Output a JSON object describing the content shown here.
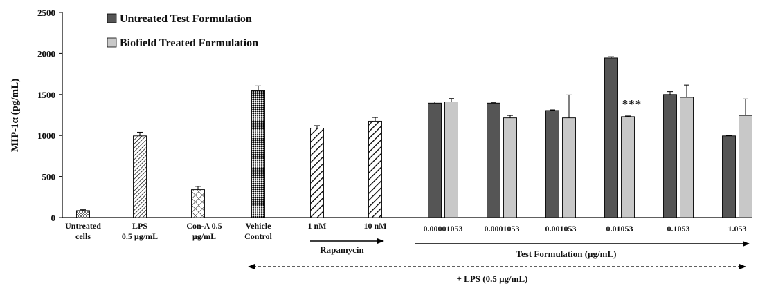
{
  "chart_data": {
    "type": "bar",
    "ylabel": "MIP-1α (pg/mL)",
    "ylim": [
      0,
      2500
    ],
    "yticks": [
      0,
      500,
      1000,
      1500,
      2000,
      2500
    ],
    "grid": false,
    "legend_position": "top-left",
    "legend": [
      "Untreated Test Formulation",
      "Biofield Treated Formulation"
    ],
    "colors": {
      "untreated": "#555555",
      "biofield": "#c8c8c8",
      "outline": "#000000"
    },
    "controls": [
      {
        "label": [
          "Untreated",
          "cells"
        ],
        "value": 85,
        "error": 10,
        "pattern": "dots"
      },
      {
        "label": [
          "LPS",
          "0.5 µg/mL"
        ],
        "value": 995,
        "error": 45,
        "pattern": "diag-dense"
      },
      {
        "label": [
          "Con-A    0.5",
          "µg/mL"
        ],
        "value": 340,
        "error": 40,
        "pattern": "diag-cross"
      },
      {
        "label": [
          "Vehicle",
          "Control"
        ],
        "value": 1545,
        "error": 60,
        "pattern": "checker"
      },
      {
        "label": [
          "1 nM"
        ],
        "value": 1090,
        "error": 30,
        "pattern": "diag-wide"
      },
      {
        "label": [
          "10 nM"
        ],
        "value": 1175,
        "error": 45,
        "pattern": "diag-wide"
      }
    ],
    "categories": [
      "0.00001053",
      "0.0001053",
      "0.001053",
      "0.01053",
      "0.1053",
      "1.053"
    ],
    "series": [
      {
        "name": "Untreated Test Formulation",
        "values": [
          1395,
          1395,
          1305,
          1945,
          1500,
          995
        ],
        "errors": [
          15,
          5,
          8,
          15,
          35,
          5
        ]
      },
      {
        "name": "Biofield Treated Formulation",
        "values": [
          1410,
          1215,
          1215,
          1230,
          1465,
          1245
        ],
        "errors": [
          40,
          30,
          280,
          8,
          150,
          200
        ]
      }
    ],
    "annotations": [
      {
        "text": "***",
        "category": "0.01053",
        "series": "Biofield Treated Formulation"
      }
    ],
    "groups": {
      "rapamycin": "Rapamycin",
      "test_formulation": "Test Formulation (µg/mL)",
      "lps": "+ LPS (0.5 µg/mL)"
    }
  }
}
